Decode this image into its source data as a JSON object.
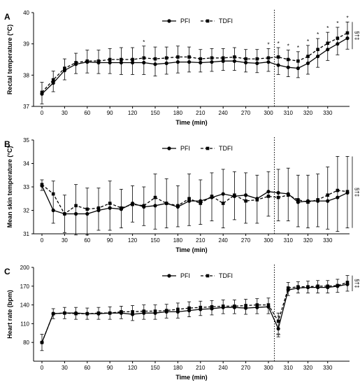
{
  "chart_data": [
    {
      "type": "line",
      "panel_label": "A",
      "xlabel": "Time (min)",
      "ylabel": "Rectal temperature (°C)",
      "x_ticks": [
        0,
        30,
        60,
        90,
        120,
        150,
        180,
        210,
        240,
        270,
        300,
        310,
        320,
        330
      ],
      "ylim": [
        37,
        40
      ],
      "y_ticks": [
        37,
        38,
        39,
        40
      ],
      "legend": [
        "PFI",
        "TDFI"
      ],
      "legend_position": "top-center",
      "x": [
        0,
        15,
        30,
        45,
        60,
        75,
        90,
        105,
        120,
        135,
        150,
        165,
        180,
        195,
        210,
        225,
        240,
        255,
        270,
        285,
        300,
        305,
        310,
        315,
        320,
        325,
        330,
        335,
        340
      ],
      "series": [
        {
          "name": "PFI",
          "style": "solid",
          "values": [
            37.4,
            37.75,
            38.15,
            38.35,
            38.42,
            38.4,
            38.4,
            38.4,
            38.4,
            38.4,
            38.35,
            38.38,
            38.42,
            38.42,
            38.4,
            38.42,
            38.45,
            38.45,
            38.4,
            38.38,
            38.42,
            38.32,
            38.25,
            38.22,
            38.38,
            38.6,
            38.82,
            39.0,
            39.18
          ]
        },
        {
          "name": "TDFI",
          "style": "dashed",
          "values": [
            37.45,
            37.85,
            38.22,
            38.4,
            38.45,
            38.45,
            38.5,
            38.5,
            38.5,
            38.55,
            38.52,
            38.55,
            38.58,
            38.58,
            38.52,
            38.55,
            38.55,
            38.58,
            38.52,
            38.52,
            38.55,
            38.58,
            38.5,
            38.45,
            38.6,
            38.82,
            39.02,
            39.18,
            39.35
          ]
        }
      ],
      "error": [
        0.32,
        0.28,
        0.3,
        0.3,
        0.35,
        0.35,
        0.35,
        0.38,
        0.38,
        0.38,
        0.38,
        0.35,
        0.35,
        0.32,
        0.3,
        0.3,
        0.3,
        0.3,
        0.3,
        0.3,
        0.3,
        0.3,
        0.3,
        0.3,
        0.35,
        0.35,
        0.35,
        0.35,
        0.35
      ],
      "significance_marks": [
        {
          "x": 135,
          "text": "*"
        },
        {
          "x": 300,
          "text": "*"
        },
        {
          "x": 305,
          "text": "*"
        },
        {
          "x": 310,
          "text": "*"
        },
        {
          "x": 315,
          "text": "*"
        },
        {
          "x": 320,
          "text": "*"
        },
        {
          "x": 325,
          "text": "*"
        },
        {
          "x": 330,
          "text": "*"
        },
        {
          "x": 335,
          "text": "*"
        },
        {
          "x": 340,
          "text": "*"
        }
      ],
      "right_annotation": "§†‡"
    },
    {
      "type": "line",
      "panel_label": "B",
      "xlabel": "Time (min)",
      "ylabel": "Mean skin temperature (°C)",
      "x_ticks": [
        0,
        30,
        60,
        90,
        120,
        150,
        180,
        210,
        240,
        270,
        300,
        310,
        320,
        330
      ],
      "ylim": [
        31,
        35
      ],
      "y_ticks": [
        31,
        32,
        33,
        34,
        35
      ],
      "legend": [
        "PFI",
        "TDFI"
      ],
      "legend_position": "top-center",
      "x": [
        0,
        15,
        30,
        45,
        60,
        75,
        90,
        105,
        120,
        135,
        150,
        165,
        180,
        195,
        210,
        225,
        240,
        255,
        270,
        285,
        300,
        305,
        310,
        315,
        320,
        325,
        330,
        335,
        340
      ],
      "series": [
        {
          "name": "PFI",
          "style": "solid",
          "values": [
            33.05,
            32.0,
            31.85,
            31.85,
            31.85,
            32.0,
            32.1,
            32.05,
            32.3,
            32.15,
            32.2,
            32.3,
            32.15,
            32.4,
            32.4,
            32.55,
            32.7,
            32.6,
            32.65,
            32.5,
            32.8,
            32.75,
            32.7,
            32.35,
            32.4,
            32.4,
            32.4,
            32.55,
            32.75
          ]
        },
        {
          "name": "TDFI",
          "style": "dashed",
          "values": [
            33.1,
            32.7,
            31.85,
            32.2,
            32.05,
            32.1,
            32.3,
            32.1,
            32.25,
            32.2,
            32.55,
            32.3,
            32.2,
            32.5,
            32.3,
            32.6,
            32.3,
            32.65,
            32.4,
            32.45,
            32.6,
            32.55,
            32.65,
            32.45,
            32.35,
            32.45,
            32.65,
            32.85,
            32.8
          ]
        }
      ],
      "error": [
        0.2,
        0.55,
        0.8,
        0.9,
        0.9,
        0.85,
        0.95,
        0.8,
        0.75,
        0.8,
        1.0,
        1.05,
        0.85,
        1.05,
        0.9,
        1.0,
        1.05,
        1.0,
        0.95,
        1.0,
        0.85,
        1.0,
        1.1,
        1.05,
        1.1,
        1.1,
        1.2,
        1.45,
        1.5
      ],
      "right_annotation": "§†‡"
    },
    {
      "type": "line",
      "panel_label": "C",
      "xlabel": "Time (min)",
      "ylabel": "Heart rate (bpm)",
      "x_ticks": [
        0,
        30,
        60,
        90,
        120,
        150,
        180,
        210,
        240,
        270,
        300,
        310,
        320,
        330
      ],
      "ylim": [
        50,
        200
      ],
      "y_ticks": [
        80,
        110,
        140,
        170,
        200
      ],
      "legend": [
        "PFI",
        "TDFI"
      ],
      "legend_position": "top-center",
      "x": [
        0,
        15,
        30,
        45,
        60,
        75,
        90,
        105,
        120,
        135,
        150,
        165,
        180,
        195,
        210,
        225,
        240,
        255,
        270,
        285,
        300,
        305,
        310,
        315,
        320,
        325,
        330,
        335,
        340
      ],
      "series": [
        {
          "name": "PFI",
          "style": "solid",
          "values": [
            80,
            126,
            127,
            127,
            126,
            126,
            127,
            127,
            125,
            127,
            127,
            129,
            129,
            131,
            133,
            134,
            136,
            136,
            135,
            136,
            137,
            102,
            164,
            167,
            168,
            168,
            168,
            170,
            173
          ]
        },
        {
          "name": "TDFI",
          "style": "dashed",
          "values": [
            80,
            126,
            127,
            126,
            126,
            127,
            127,
            129,
            129,
            130,
            130,
            131,
            133,
            135,
            136,
            137,
            138,
            138,
            139,
            140,
            140,
            114,
            167,
            169,
            169,
            170,
            170,
            171,
            176
          ]
        }
      ],
      "error": [
        13,
        8,
        9,
        9,
        9,
        9,
        10,
        9,
        10,
        10,
        10,
        10,
        10,
        10,
        10,
        10,
        10,
        10,
        10,
        10,
        11,
        13,
        9,
        8,
        9,
        9,
        9,
        10,
        11
      ],
      "point_annotations": [
        {
          "x": 305,
          "y": 117,
          "text": "*"
        },
        {
          "x": 305,
          "y": 88,
          "text": "**"
        }
      ],
      "right_annotation": "§†‡"
    }
  ]
}
